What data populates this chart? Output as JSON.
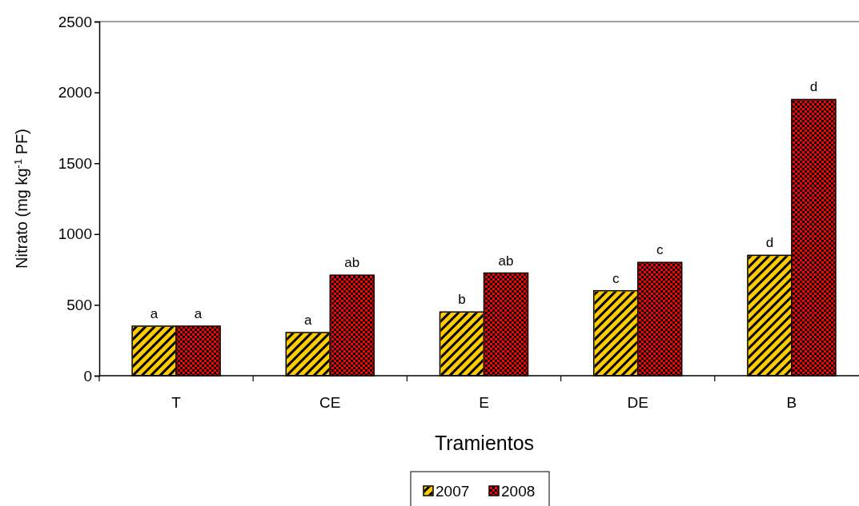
{
  "chart_data": {
    "type": "bar",
    "xlabel": "Tramientos",
    "ylabel": "Nitrato (mg kg$^{-1}$ PF)",
    "categories": [
      "T",
      "CE",
      "E",
      "DE",
      "B"
    ],
    "series": [
      {
        "name": "2007",
        "color": "#ffcc00",
        "values": [
          350,
          305,
          450,
          600,
          850
        ]
      },
      {
        "name": "2008",
        "color": "#ff0000",
        "values": [
          350,
          710,
          725,
          800,
          1950
        ]
      }
    ],
    "ylim": [
      0,
      2500
    ],
    "yticks": [
      0,
      500,
      1000,
      1500,
      2000,
      2500
    ],
    "legend": "bottom",
    "annotations": [
      {
        "text": "a",
        "x": "T",
        "y": 350
      },
      {
        "text": "a",
        "x": "T",
        "y": 350
      },
      {
        "text": "a",
        "x": "CE",
        "y": 305
      },
      {
        "text": "ab",
        "x": "CE",
        "y": 710
      },
      {
        "text": "b",
        "x": "E",
        "y": 450
      },
      {
        "text": "ab",
        "x": "E",
        "y": 725
      },
      {
        "text": "c",
        "x": "DE",
        "y": 600
      },
      {
        "text": "c",
        "x": "DE",
        "y": 800
      },
      {
        "text": "d",
        "x": "B",
        "y": 850
      },
      {
        "text": "d",
        "x": "B",
        "y": 1950
      }
    ]
  }
}
